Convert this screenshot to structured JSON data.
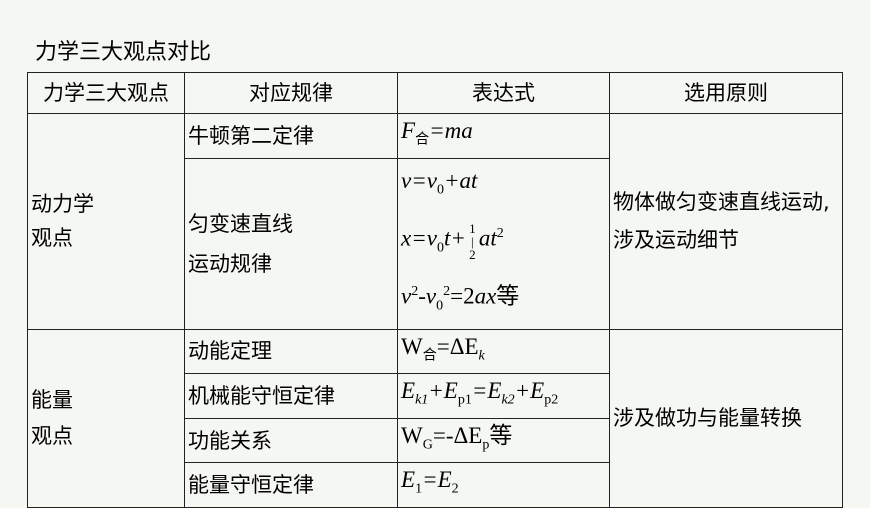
{
  "title": "力学三大观点对比",
  "headers": [
    "力学三大观点",
    "对应规律",
    "表达式",
    "选用原则"
  ],
  "dynamics": {
    "view": "动力学\n观点",
    "laws": [
      "牛顿第二定律",
      "匀变速直线\n运动规律"
    ],
    "principle": "物体做匀变速直线运动,涉及运动细节",
    "formulas": [
      [
        [
          [
            "F",
            "i"
          ],
          [
            "合",
            "sub"
          ],
          [
            "=ma",
            "i"
          ]
        ]
      ],
      [
        [
          [
            "v=v",
            "i"
          ],
          [
            "0",
            "sub"
          ],
          [
            "+at",
            "i"
          ]
        ],
        [
          [
            "x=v",
            "i"
          ],
          [
            "0",
            "sub"
          ],
          [
            "t+",
            "i"
          ],
          [
            "1|2",
            "frac"
          ],
          [
            "at",
            "i"
          ],
          [
            "2",
            "sup"
          ]
        ],
        [
          [
            "v",
            "i"
          ],
          [
            "2",
            "sup"
          ],
          [
            "-v",
            "i"
          ],
          [
            "0",
            "sub"
          ],
          [
            "2",
            "sup"
          ],
          [
            "=2",
            "n"
          ],
          [
            "ax",
            "i"
          ],
          [
            "等",
            "n"
          ]
        ]
      ]
    ]
  },
  "energy": {
    "view": "能量\n观点",
    "laws": [
      "动能定理",
      "机械能守恒定律",
      "功能关系",
      "能量守恒定律"
    ],
    "principle": "涉及做功与能量转换",
    "formulas": [
      [
        [
          "W",
          "n"
        ],
        [
          "合",
          "sub"
        ],
        [
          "=ΔE",
          "n"
        ],
        [
          "k",
          "subi"
        ]
      ],
      [
        [
          "E",
          "i"
        ],
        [
          "k1",
          "subi"
        ],
        [
          "+E",
          "i"
        ],
        [
          "p1",
          "sub"
        ],
        [
          "=E",
          "i"
        ],
        [
          "k2",
          "subi"
        ],
        [
          "+E",
          "i"
        ],
        [
          "p2",
          "sub"
        ]
      ],
      [
        [
          "W",
          "n"
        ],
        [
          "G",
          "sub"
        ],
        [
          "=-ΔE",
          "n"
        ],
        [
          "p",
          "sub"
        ],
        [
          "等",
          "n"
        ]
      ],
      [
        [
          "E",
          "i"
        ],
        [
          "1",
          "sub"
        ],
        [
          "=E",
          "i"
        ],
        [
          "2",
          "sub"
        ]
      ]
    ]
  }
}
